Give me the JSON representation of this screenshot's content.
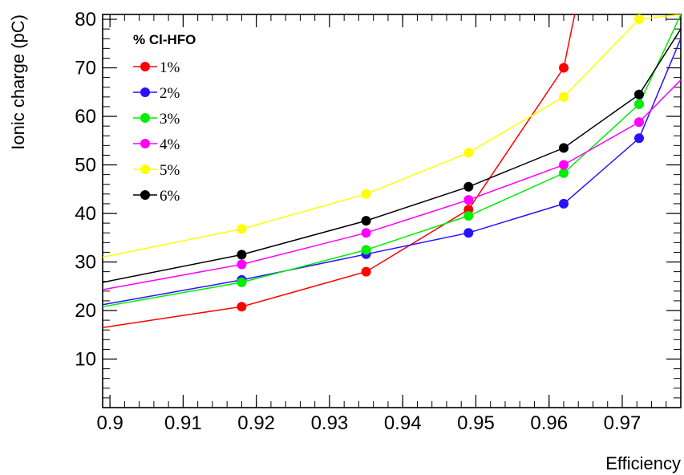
{
  "chart_data": {
    "type": "line",
    "xlabel": "Efficiency",
    "ylabel": "Ionic charge (pC)",
    "xlim": [
      0.899,
      0.978
    ],
    "ylim": [
      0,
      81
    ],
    "xticks": [
      0.9,
      0.91,
      0.92,
      0.93,
      0.94,
      0.95,
      0.96,
      0.97
    ],
    "xtick_labels": [
      "0.9",
      "0.91",
      "0.92",
      "0.93",
      "0.94",
      "0.95",
      "0.96",
      "0.97"
    ],
    "yticks": [
      10,
      20,
      30,
      40,
      50,
      60,
      70,
      80
    ],
    "ytick_labels": [
      "10",
      "20",
      "30",
      "40",
      "50",
      "60",
      "70",
      "80"
    ],
    "grid": false,
    "legend": {
      "title": "% Cl-HFO",
      "placement": "top-left"
    },
    "series": [
      {
        "name": "1%",
        "color": "#ff0000",
        "x": [
          0.899,
          0.918,
          0.935,
          0.949,
          0.962,
          0.9635
        ],
        "y": [
          16.5,
          20.8,
          28.0,
          40.8,
          70.0,
          81.0
        ],
        "markers": [
          false,
          true,
          true,
          true,
          true,
          false
        ]
      },
      {
        "name": "2%",
        "color": "#2a10ff",
        "x": [
          0.899,
          0.918,
          0.935,
          0.949,
          0.962,
          0.9723,
          0.978
        ],
        "y": [
          21.2,
          26.3,
          31.6,
          36.0,
          42.0,
          55.5,
          76.0
        ],
        "markers": [
          false,
          true,
          true,
          true,
          true,
          true,
          false
        ]
      },
      {
        "name": "3%",
        "color": "#00ee00",
        "x": [
          0.899,
          0.918,
          0.935,
          0.949,
          0.962,
          0.9723,
          0.978
        ],
        "y": [
          20.8,
          25.8,
          32.5,
          39.5,
          48.3,
          62.5,
          81.0
        ],
        "markers": [
          false,
          true,
          true,
          true,
          true,
          true,
          false
        ]
      },
      {
        "name": "4%",
        "color": "#ff00ff",
        "x": [
          0.899,
          0.918,
          0.935,
          0.949,
          0.962,
          0.9723,
          0.978
        ],
        "y": [
          24.3,
          29.5,
          36.0,
          42.8,
          50.0,
          58.8,
          67.5
        ],
        "markers": [
          false,
          true,
          true,
          true,
          true,
          true,
          false
        ]
      },
      {
        "name": "5%",
        "color": "#ffff00",
        "x": [
          0.899,
          0.918,
          0.935,
          0.949,
          0.962,
          0.9723,
          0.978
        ],
        "y": [
          31.0,
          36.8,
          44.0,
          52.5,
          64.0,
          80.0,
          81.0
        ],
        "markers": [
          false,
          true,
          true,
          true,
          true,
          true,
          false
        ]
      },
      {
        "name": "6%",
        "color": "#000000",
        "x": [
          0.899,
          0.918,
          0.935,
          0.949,
          0.962,
          0.9723,
          0.978
        ],
        "y": [
          25.8,
          31.5,
          38.5,
          45.5,
          53.5,
          64.5,
          78.0
        ],
        "markers": [
          false,
          true,
          true,
          true,
          true,
          true,
          false
        ]
      }
    ]
  }
}
